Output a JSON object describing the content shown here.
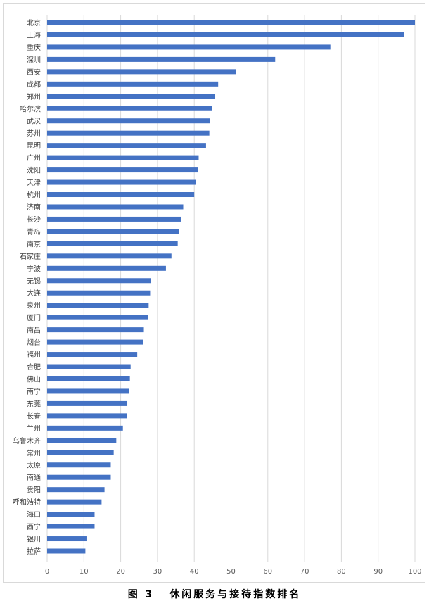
{
  "caption": {
    "figure_label": "图 3",
    "title": "休闲服务与接待指数排名"
  },
  "chart_data": {
    "type": "bar",
    "orientation": "horizontal",
    "title": "休闲服务与接待指数排名",
    "xlabel": "",
    "ylabel": "",
    "xlim": [
      0,
      100
    ],
    "x_ticks": [
      0,
      10,
      20,
      30,
      40,
      50,
      60,
      70,
      80,
      90,
      100
    ],
    "grid": true,
    "legend": "none",
    "bar_color": "#4472c4",
    "grid_color": "#d9d9d9",
    "categories": [
      "北京",
      "上海",
      "重庆",
      "深圳",
      "西安",
      "成都",
      "郑州",
      "哈尔滨",
      "武汉",
      "苏州",
      "昆明",
      "广州",
      "沈阳",
      "天津",
      "杭州",
      "济南",
      "长沙",
      "青岛",
      "南京",
      "石家庄",
      "宁波",
      "无锡",
      "大连",
      "泉州",
      "厦门",
      "南昌",
      "烟台",
      "福州",
      "合肥",
      "佛山",
      "南宁",
      "东莞",
      "长春",
      "兰州",
      "乌鲁木齐",
      "常州",
      "太原",
      "南通",
      "贵阳",
      "呼和浩特",
      "海口",
      "西宁",
      "银川",
      "拉萨"
    ],
    "values": [
      100,
      97,
      77,
      62,
      51.3,
      46.5,
      45.7,
      44.8,
      44.3,
      44.1,
      43.2,
      41.2,
      41,
      40.5,
      40,
      37,
      36.4,
      35.9,
      35.5,
      33.8,
      32.3,
      28.2,
      28,
      27.6,
      27.4,
      26.3,
      26.1,
      24.5,
      22.7,
      22.5,
      22.2,
      21.8,
      21.7,
      20.6,
      18.8,
      18.1,
      17.3,
      17.3,
      15.6,
      14.8,
      12.9,
      12.9,
      10.7,
      10.4
    ]
  }
}
